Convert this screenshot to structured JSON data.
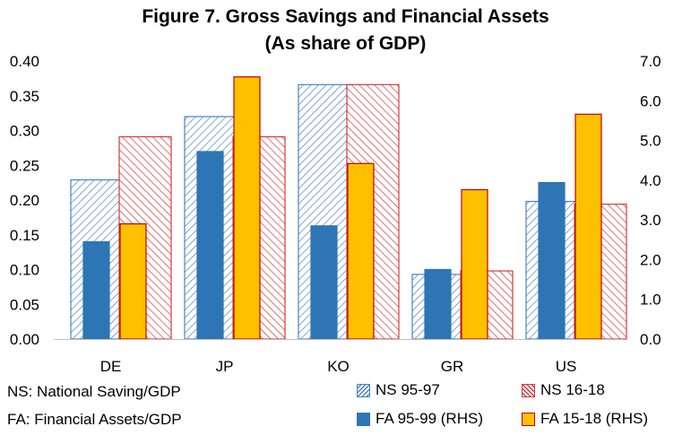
{
  "chart_data": {
    "type": "bar",
    "title_line1": "Figure 7. Gross Savings and Financial Assets",
    "title_line2": "(As share of GDP)",
    "categories": [
      "DE",
      "JP",
      "KO",
      "GR",
      "US"
    ],
    "y_left": {
      "min": 0,
      "max": 0.4,
      "step": 0.05,
      "ticks": [
        "0.00",
        "0.05",
        "0.10",
        "0.15",
        "0.20",
        "0.25",
        "0.30",
        "0.35",
        "0.40"
      ]
    },
    "y_right": {
      "min": 0,
      "max": 7.0,
      "step": 1.0,
      "ticks": [
        "0.0",
        "1.0",
        "2.0",
        "3.0",
        "4.0",
        "5.0",
        "6.0",
        "7.0"
      ]
    },
    "grid": false,
    "series": [
      {
        "name": "NS 95-97",
        "axis": "left",
        "style": "hatch-blue",
        "values": [
          0.229,
          0.32,
          0.366,
          0.093,
          0.198
        ]
      },
      {
        "name": "NS 16-18",
        "axis": "left",
        "style": "hatch-red",
        "values": [
          0.291,
          0.291,
          0.366,
          0.098,
          0.194
        ]
      },
      {
        "name": "FA 95-99 (RHS)",
        "axis": "right",
        "style": "solid-blue",
        "values": [
          2.45,
          4.72,
          2.85,
          1.75,
          3.94
        ]
      },
      {
        "name": "FA 15-18 (RHS)",
        "axis": "right",
        "style": "solid-gold",
        "values": [
          2.9,
          6.6,
          4.42,
          3.76,
          5.66
        ]
      }
    ],
    "colors": {
      "ns_blue": "#4a82c4",
      "ns_red": "#d53a3a",
      "fa_blue": "#2e75b6",
      "fa_gold": "#ffc000",
      "fa_gold_border": "#c00000"
    }
  },
  "notes": {
    "ns": "NS: National Saving/GDP",
    "fa": "FA: Financial Assets/GDP"
  }
}
